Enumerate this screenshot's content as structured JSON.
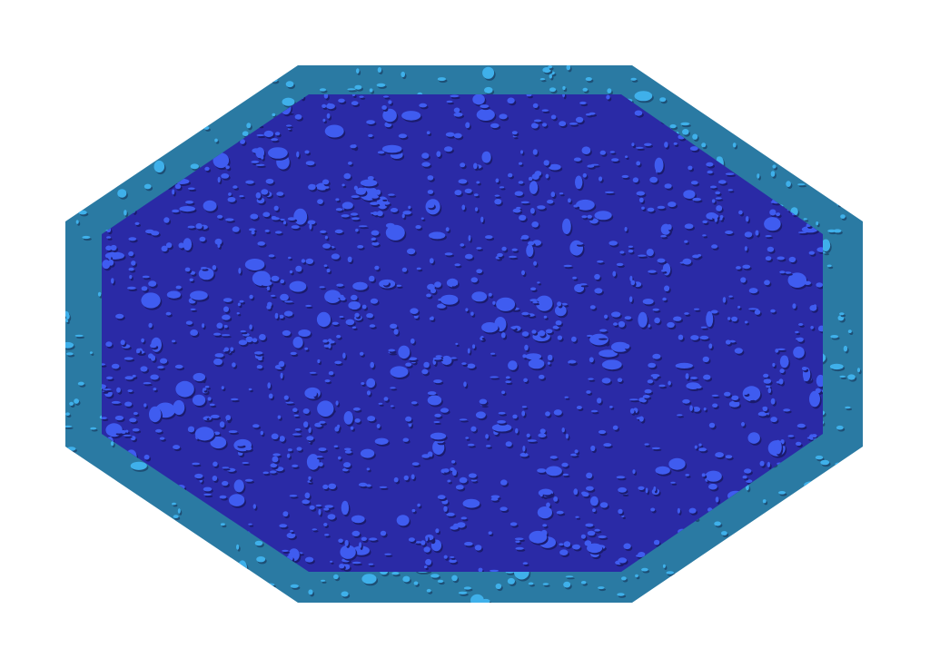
{
  "scene": {
    "shape": "octagon",
    "texture": "bumpy-droplets",
    "colors": {
      "background": "#ffffff",
      "rim": "#2a7aa3",
      "rim_highlight": "#3fb0ea",
      "rim_shadow": "#1d4f75",
      "inner": "#2a2aa6",
      "inner_highlight": "#3f5cf0",
      "inner_shadow": "#1b1b6e"
    }
  }
}
